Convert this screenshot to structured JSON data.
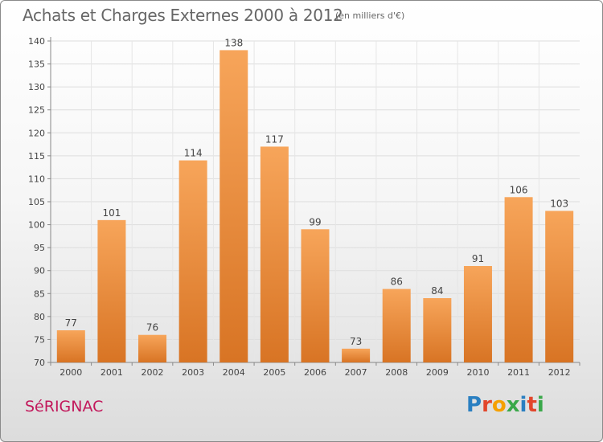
{
  "header": {
    "title": "Achats et Charges Externes 2000 à 2012",
    "unit": "(en milliers d'€)"
  },
  "footer": {
    "commune": "SéRIGNAC",
    "logo_text": "Proxiti",
    "logo_colors": [
      "#2a7fc1",
      "#e2462b",
      "#f5a000",
      "#3aa84a",
      "#2a7fc1",
      "#e2462b",
      "#3aa84a"
    ]
  },
  "chart_data": {
    "type": "bar",
    "title": "Achats et Charges Externes 2000 à 2012",
    "subtitle": "(en milliers d'€)",
    "categories": [
      "2000",
      "2001",
      "2002",
      "2003",
      "2004",
      "2005",
      "2006",
      "2007",
      "2008",
      "2009",
      "2010",
      "2011",
      "2012"
    ],
    "values": [
      77,
      101,
      76,
      114,
      138,
      117,
      99,
      73,
      86,
      84,
      91,
      106,
      103
    ],
    "ylim": [
      70,
      140
    ],
    "yticks": [
      70,
      75,
      80,
      85,
      90,
      95,
      100,
      105,
      110,
      115,
      120,
      125,
      130,
      135,
      140
    ],
    "grid": true,
    "bar_color_top": "#f7a55a",
    "bar_color_bottom": "#d87424"
  }
}
